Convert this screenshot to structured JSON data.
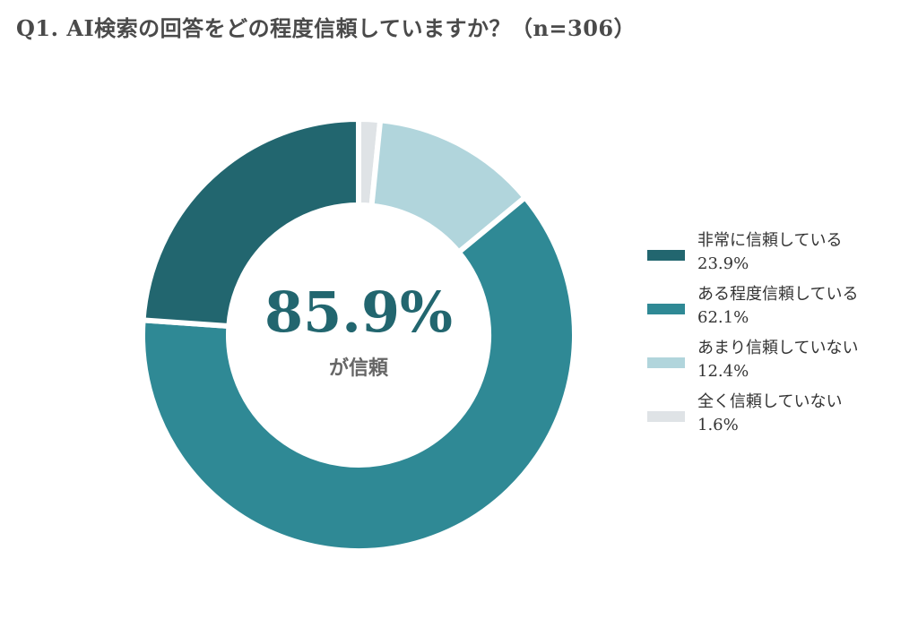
{
  "title": "Q1. AI検索の回答をどの程度信頼していますか？（n=306）",
  "center": {
    "value": "85.9%",
    "caption": "が信頼"
  },
  "legend": [
    {
      "label": "非常に信頼している",
      "pct": "23.9%"
    },
    {
      "label": "ある程度信頼している",
      "pct": "62.1%"
    },
    {
      "label": "あまり信頼していない",
      "pct": "12.4%"
    },
    {
      "label": "全く信頼していない",
      "pct": "1.6%"
    }
  ],
  "chart_data": {
    "type": "pie",
    "subtype": "donut",
    "title": "Q1. AI検索の回答をどの程度信頼していますか？（n=306）",
    "n": 306,
    "legend_position": "right",
    "slices": [
      {
        "name": "全く信頼していない",
        "value": 1.6,
        "color": "#dfe3e6"
      },
      {
        "name": "あまり信頼していない",
        "value": 12.4,
        "color": "#b1d5dc"
      },
      {
        "name": "ある程度信頼している",
        "value": 62.1,
        "color": "#2f8995"
      },
      {
        "name": "非常に信頼している",
        "value": 23.9,
        "color": "#22666f"
      }
    ],
    "center_text": "85.9%",
    "center_caption": "が信頼"
  }
}
